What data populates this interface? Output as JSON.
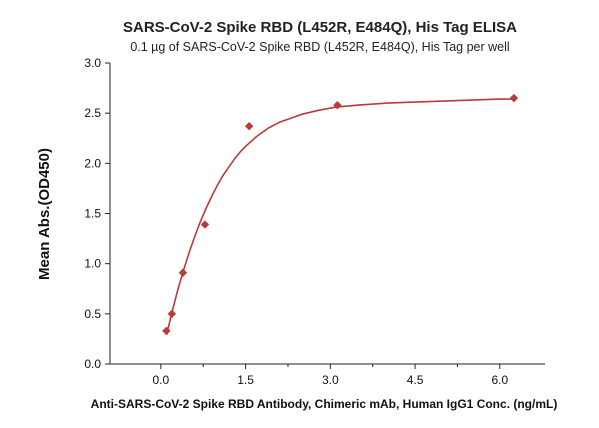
{
  "chart_data": {
    "type": "scatter",
    "title": "SARS-CoV-2 Spike RBD (L452R, E484Q), His Tag ELISA",
    "subtitle": "0.1 µg of SARS-CoV-2 Spike RBD (L452R, E484Q), His Tag per well",
    "xlabel": "Anti-SARS-CoV-2 Spike RBD Antibody, Chimeric mAb, Human IgG1 Conc. (ng/mL)",
    "ylabel": "Mean Abs.(OD450)",
    "xlim": [
      -0.9,
      6.8
    ],
    "ylim": [
      0,
      3.0
    ],
    "x_ticks": [
      0.0,
      1.5,
      3.0,
      4.5,
      6.0
    ],
    "x_tick_labels": [
      "0.0",
      "1.5",
      "3.0",
      "4.5",
      "6.0"
    ],
    "y_ticks": [
      0.0,
      0.5,
      1.0,
      1.5,
      2.0,
      2.5,
      3.0
    ],
    "y_tick_labels": [
      "0.0",
      "0.5",
      "1.0",
      "1.5",
      "2.0",
      "2.5",
      "3.0"
    ],
    "series": [
      {
        "color": "#b83a3a",
        "marker": "diamond",
        "x": [
          0.098,
          0.195,
          0.391,
          0.781,
          1.563,
          3.125,
          6.25
        ],
        "y": [
          0.33,
          0.5,
          0.91,
          1.39,
          2.37,
          2.58,
          2.65
        ],
        "fit_curve": {
          "x": [
            0.1,
            0.2,
            0.3,
            0.4,
            0.5,
            0.6,
            0.7,
            0.8,
            0.9,
            1.0,
            1.1,
            1.2,
            1.3,
            1.4,
            1.5,
            1.7,
            1.9,
            2.1,
            2.3,
            2.5,
            2.8,
            3.1,
            3.5,
            4.0,
            4.5,
            5.0,
            5.5,
            6.0,
            6.25
          ],
          "y": [
            0.29,
            0.52,
            0.74,
            0.93,
            1.11,
            1.27,
            1.42,
            1.55,
            1.67,
            1.78,
            1.88,
            1.96,
            2.04,
            2.11,
            2.17,
            2.27,
            2.35,
            2.41,
            2.45,
            2.49,
            2.53,
            2.56,
            2.58,
            2.6,
            2.61,
            2.62,
            2.63,
            2.64,
            2.64
          ]
        }
      }
    ]
  }
}
